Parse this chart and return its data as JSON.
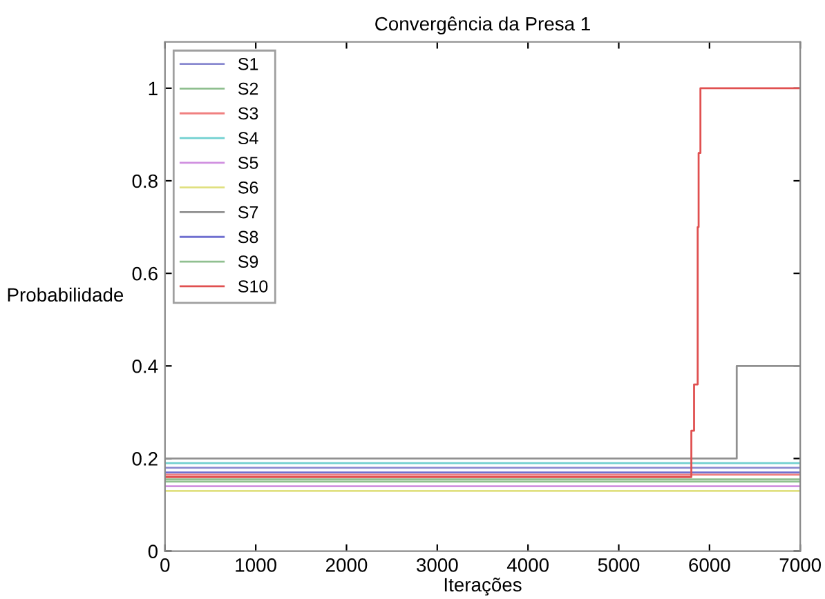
{
  "chart_data": {
    "type": "step",
    "title": "Convergência da Presa 1",
    "xlabel": "Iterações",
    "ylabel": "Probabilidade",
    "xlim": [
      0,
      7000
    ],
    "ylim": [
      0,
      1.1
    ],
    "xticks": [
      0,
      1000,
      2000,
      3000,
      4000,
      5000,
      6000,
      7000
    ],
    "yticks": [
      0,
      0.2,
      0.4,
      0.6,
      0.8,
      1
    ],
    "grid": false,
    "legend": "top left",
    "marker": "none",
    "line_style": "solid",
    "series": [
      {
        "name": "S1",
        "color": "#8a8ad0",
        "x": [
          0,
          7000
        ],
        "values": [
          0.18,
          0.18
        ]
      },
      {
        "name": "S2",
        "color": "#8fbf8f",
        "x": [
          0,
          7000
        ],
        "values": [
          0.155,
          0.155
        ]
      },
      {
        "name": "S3",
        "color": "#f08080",
        "x": [
          0,
          7000
        ],
        "values": [
          0.165,
          0.165
        ]
      },
      {
        "name": "S4",
        "color": "#70d0d0",
        "x": [
          0,
          7000
        ],
        "values": [
          0.19,
          0.19
        ]
      },
      {
        "name": "S5",
        "color": "#d090e0",
        "x": [
          0,
          7000
        ],
        "values": [
          0.14,
          0.14
        ]
      },
      {
        "name": "S6",
        "color": "#e0e080",
        "x": [
          0,
          7000
        ],
        "values": [
          0.13,
          0.13
        ]
      },
      {
        "name": "S7",
        "color": "#909090",
        "x": [
          0,
          6300,
          7000
        ],
        "values": [
          0.2,
          0.4,
          0.4
        ]
      },
      {
        "name": "S8",
        "color": "#7070d0",
        "x": [
          0,
          7000
        ],
        "values": [
          0.17,
          0.17
        ]
      },
      {
        "name": "S9",
        "color": "#90c090",
        "x": [
          0,
          7000
        ],
        "values": [
          0.15,
          0.15
        ]
      },
      {
        "name": "S10",
        "color": "#e05050",
        "x": [
          0,
          5800,
          5830,
          5870,
          5880,
          5900,
          7000
        ],
        "values": [
          0.16,
          0.26,
          0.36,
          0.7,
          0.86,
          1.0,
          1.0
        ]
      }
    ]
  }
}
